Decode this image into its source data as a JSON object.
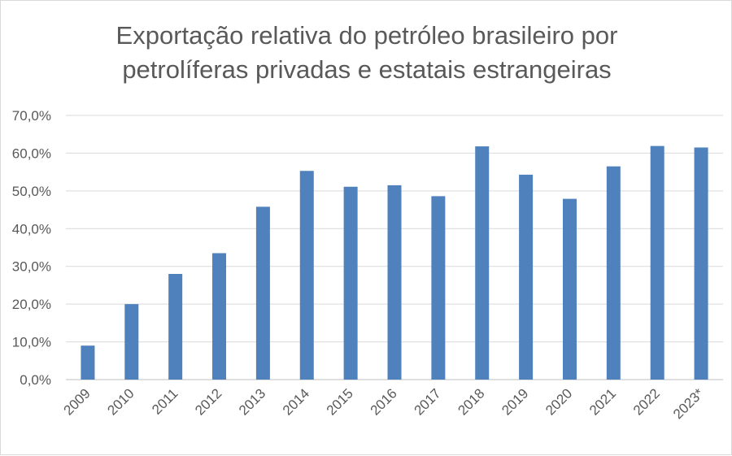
{
  "chart_data": {
    "type": "bar",
    "title_line1": "Exportação relativa do petróleo brasileiro por",
    "title_line2": "petrolíferas privadas e estatais estrangeiras",
    "xlabel": "",
    "ylabel": "",
    "categories": [
      "2009",
      "2010",
      "2011",
      "2012",
      "2013",
      "2014",
      "2015",
      "2016",
      "2017",
      "2018",
      "2019",
      "2020",
      "2021",
      "2022",
      "2023*"
    ],
    "values": [
      9.0,
      20.0,
      28.0,
      33.5,
      45.8,
      55.3,
      51.1,
      51.5,
      48.6,
      61.8,
      54.3,
      47.9,
      56.5,
      61.9,
      61.5
    ],
    "ylim": [
      0,
      70
    ],
    "yticks": [
      "0,0%",
      "10,0%",
      "20,0%",
      "30,0%",
      "40,0%",
      "50,0%",
      "60,0%",
      "70,0%"
    ],
    "grid": true,
    "bar_color": "#4f81bd",
    "grid_color": "#d9d9d9",
    "text_color": "#595959"
  }
}
